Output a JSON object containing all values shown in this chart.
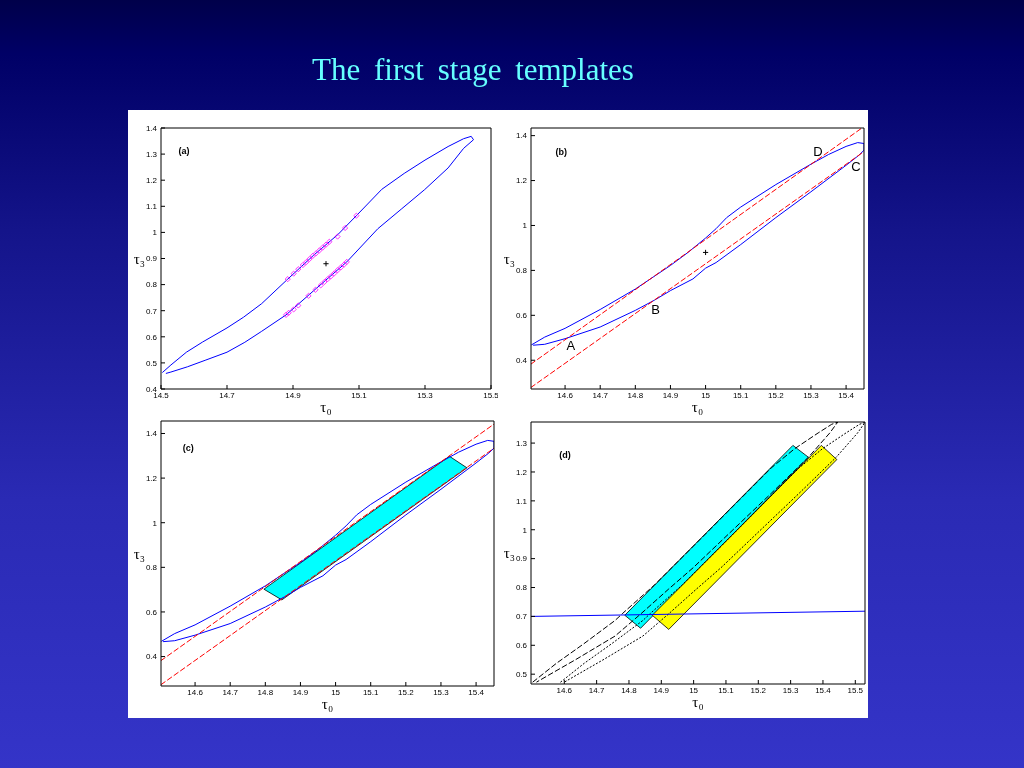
{
  "chart_data": [
    {
      "type": "line",
      "title": "The first stage templates",
      "xlabel": "τ₀",
      "ylabel": "τ₃",
      "annotations": [
        "(a)"
      ],
      "xlim": [
        14.5,
        15.5
      ],
      "xticks": [
        14.5,
        14.7,
        14.9,
        15.1,
        15.3,
        15.5
      ],
      "ylim": [
        0.4,
        1.4
      ],
      "yticks": [
        0.4,
        0.5,
        0.6,
        0.7,
        0.8,
        0.9,
        1,
        1.1,
        1.2,
        1.3,
        1.4
      ],
      "series": [
        {
          "type": "line",
          "color": "#0000ff",
          "x": [
            14.505,
            14.53,
            14.577,
            14.626,
            14.7,
            14.75,
            14.805,
            14.884,
            14.963,
            15.037,
            15.092,
            15.169,
            15.237,
            15.3,
            15.37,
            15.417,
            15.44,
            15.447,
            15.417,
            15.37,
            15.299,
            15.228,
            15.157,
            15.063,
            14.963,
            14.879,
            14.805,
            14.754,
            14.7,
            14.636,
            14.58,
            14.53,
            14.516
          ],
          "values": [
            0.464,
            0.492,
            0.541,
            0.58,
            0.634,
            0.675,
            0.727,
            0.821,
            0.913,
            0.993,
            1.064,
            1.165,
            1.226,
            1.277,
            1.329,
            1.359,
            1.368,
            1.355,
            1.322,
            1.247,
            1.164,
            1.089,
            1.014,
            0.887,
            0.777,
            0.684,
            0.621,
            0.579,
            0.541,
            0.511,
            0.485,
            0.465,
            0.46
          ]
        },
        {
          "type": "scatter",
          "marker": "diamond",
          "color": "#ff00ff",
          "x": [
            14.884,
            14.902,
            14.916,
            14.93,
            14.94,
            14.95,
            14.96,
            14.97,
            14.98,
            14.99,
            15.0,
            15.01,
            15.035,
            15.058,
            15.092
          ],
          "values": [
            0.821,
            0.842,
            0.859,
            0.875,
            0.886,
            0.898,
            0.91,
            0.92,
            0.931,
            0.942,
            0.953,
            0.964,
            0.984,
            1.017,
            1.064
          ]
        },
        {
          "type": "scatter",
          "marker": "diamond",
          "color": "#ff00ff",
          "x": [
            14.879,
            14.887,
            14.902,
            14.916,
            14.947,
            14.968,
            14.984,
            14.995,
            15.005,
            15.015,
            15.025,
            15.035,
            15.045,
            15.055,
            15.063
          ],
          "values": [
            0.684,
            0.692,
            0.705,
            0.72,
            0.757,
            0.78,
            0.797,
            0.81,
            0.821,
            0.832,
            0.843,
            0.855,
            0.866,
            0.877,
            0.887
          ]
        },
        {
          "type": "scatter",
          "marker": "cross",
          "color": "#000000",
          "x": [
            15.0
          ],
          "values": [
            0.88
          ]
        }
      ]
    },
    {
      "type": "line",
      "xlabel": "τ₀",
      "ylabel": "τ₃",
      "annotations": [
        "(b)",
        "A",
        "B",
        "C",
        "D"
      ],
      "xlim": [
        14.503,
        15.451
      ],
      "xticks": [
        14.6,
        14.7,
        14.8,
        14.9,
        15,
        15.1,
        15.2,
        15.3,
        15.4
      ],
      "ylim": [
        0.272,
        1.434
      ],
      "yticks": [
        0.4,
        0.6,
        0.8,
        1,
        1.2,
        1.4
      ],
      "series": [
        {
          "type": "line",
          "color": "#0000ff",
          "x": [
            14.505,
            14.542,
            14.6,
            14.7,
            14.8,
            14.9,
            14.95,
            15.0,
            15.03,
            15.06,
            15.1,
            15.2,
            15.3,
            15.35,
            15.4,
            15.433,
            15.451,
            15.451,
            15.436,
            15.4,
            15.3,
            15.2,
            15.1,
            15.03,
            15.0,
            14.964,
            14.9,
            14.855,
            14.8,
            14.7,
            14.6,
            14.542,
            14.51
          ],
          "values": [
            0.469,
            0.503,
            0.542,
            0.626,
            0.717,
            0.822,
            0.88,
            0.944,
            0.986,
            1.035,
            1.082,
            1.182,
            1.273,
            1.316,
            1.352,
            1.369,
            1.365,
            1.335,
            1.312,
            1.268,
            1.15,
            1.035,
            0.915,
            0.835,
            0.81,
            0.762,
            0.71,
            0.668,
            0.622,
            0.548,
            0.496,
            0.471,
            0.467
          ]
        },
        {
          "type": "line",
          "color": "#ff0000",
          "line_style": "dashed",
          "x": [
            14.503,
            15.445
          ],
          "values": [
            0.383,
            1.434
          ]
        },
        {
          "type": "line",
          "color": "#ff0000",
          "line_style": "dashed",
          "x": [
            14.503,
            15.451
          ],
          "values": [
            0.279,
            1.329
          ]
        },
        {
          "type": "scatter",
          "marker": "cross",
          "color": "#000000",
          "x": [
            15.0
          ],
          "values": [
            0.88
          ]
        }
      ]
    },
    {
      "type": "line",
      "xlabel": "τ₀",
      "ylabel": "τ₃",
      "annotations": [
        "(c)"
      ],
      "xlim": [
        14.503,
        15.451
      ],
      "xticks": [
        14.6,
        14.7,
        14.8,
        14.9,
        15,
        15.1,
        15.2,
        15.3,
        15.4
      ],
      "ylim": [
        0.268,
        1.456
      ],
      "yticks": [
        0.4,
        0.6,
        0.8,
        1,
        1.2,
        1.4
      ],
      "series": [
        {
          "type": "line",
          "color": "#0000ff",
          "x": [
            14.505,
            14.542,
            14.6,
            14.7,
            14.8,
            14.9,
            14.95,
            15.0,
            15.03,
            15.06,
            15.1,
            15.2,
            15.3,
            15.35,
            15.4,
            15.433,
            15.451,
            15.451,
            15.436,
            15.4,
            15.3,
            15.2,
            15.1,
            15.03,
            15.0,
            14.964,
            14.9,
            14.855,
            14.8,
            14.7,
            14.6,
            14.542,
            14.51
          ],
          "values": [
            0.469,
            0.503,
            0.542,
            0.626,
            0.717,
            0.822,
            0.88,
            0.944,
            0.986,
            1.035,
            1.082,
            1.182,
            1.273,
            1.316,
            1.352,
            1.369,
            1.365,
            1.335,
            1.312,
            1.268,
            1.15,
            1.035,
            0.915,
            0.835,
            0.81,
            0.762,
            0.71,
            0.668,
            0.622,
            0.548,
            0.496,
            0.471,
            0.467
          ]
        },
        {
          "type": "line",
          "color": "#ff0000",
          "line_style": "dashed",
          "x": [
            14.503,
            15.451
          ],
          "values": [
            0.382,
            1.442
          ]
        },
        {
          "type": "line",
          "color": "#ff0000",
          "line_style": "dashed",
          "x": [
            14.503,
            15.451
          ],
          "values": [
            0.274,
            1.334
          ]
        },
        {
          "type": "area",
          "color": "#00ffff",
          "x": [
            14.796,
            14.847,
            15.374,
            15.324
          ],
          "values": [
            0.702,
            0.654,
            1.246,
            1.298
          ]
        }
      ]
    },
    {
      "type": "line",
      "xlabel": "τ₀",
      "ylabel": "τ₃",
      "annotations": [
        "(d)"
      ],
      "xlim": [
        14.497,
        15.53
      ],
      "xticks": [
        14.6,
        14.7,
        14.8,
        14.9,
        15,
        15.1,
        15.2,
        15.3,
        15.4,
        15.5
      ],
      "ylim": [
        0.466,
        1.373
      ],
      "yticks": [
        0.5,
        0.6,
        0.7,
        0.8,
        0.9,
        1,
        1.1,
        1.2,
        1.3
      ],
      "series": [
        {
          "type": "area",
          "color": "#00ffff",
          "x": [
            14.787,
            14.836,
            15.355,
            15.307
          ],
          "values": [
            0.704,
            0.659,
            1.251,
            1.292
          ]
        },
        {
          "type": "area",
          "color": "#ffff00",
          "x": [
            14.872,
            14.923,
            15.443,
            15.395
          ],
          "values": [
            0.704,
            0.655,
            1.243,
            1.292
          ]
        },
        {
          "type": "line",
          "color": "#000000",
          "line_style": "dashed",
          "x": [
            14.503,
            14.576,
            14.66,
            14.757,
            14.781,
            14.878,
            14.999,
            15.119,
            15.24,
            15.313,
            15.385,
            15.427,
            15.446,
            15.421,
            15.355,
            15.24,
            15.119,
            14.999,
            14.923,
            14.84,
            14.757,
            14.636,
            14.552,
            14.515
          ],
          "values": [
            0.473,
            0.538,
            0.605,
            0.686,
            0.711,
            0.808,
            0.943,
            1.078,
            1.214,
            1.281,
            1.335,
            1.365,
            1.373,
            1.335,
            1.251,
            1.126,
            0.997,
            0.869,
            0.795,
            0.712,
            0.632,
            0.551,
            0.497,
            0.473
          ]
        },
        {
          "type": "line",
          "color": "#000000",
          "line_style": "dotted",
          "x": [
            14.589,
            14.662,
            14.746,
            14.843,
            14.867,
            14.964,
            15.085,
            15.205,
            15.326,
            15.399,
            15.471,
            15.513,
            15.53,
            15.507,
            15.441,
            15.326,
            15.205,
            15.085,
            15.009,
            14.926,
            14.843,
            14.722,
            14.638,
            14.601
          ],
          "values": [
            0.473,
            0.538,
            0.605,
            0.686,
            0.711,
            0.808,
            0.943,
            1.078,
            1.214,
            1.281,
            1.335,
            1.365,
            1.372,
            1.335,
            1.251,
            1.126,
            0.997,
            0.869,
            0.795,
            0.712,
            0.632,
            0.551,
            0.497,
            0.473
          ]
        },
        {
          "type": "line",
          "color": "#0000ff",
          "x": [
            14.497,
            15.53
          ],
          "values": [
            0.7,
            0.718
          ]
        }
      ]
    }
  ]
}
